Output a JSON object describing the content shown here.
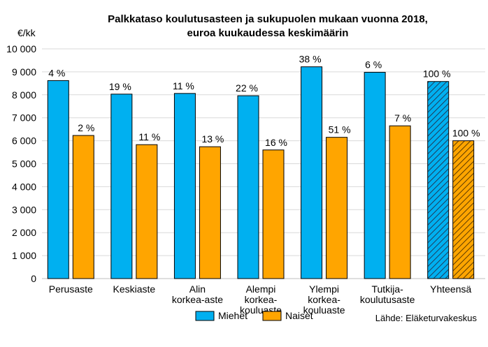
{
  "chart_data": {
    "type": "bar",
    "title": [
      "Palkkataso koulutusasteen ja sukupuolen mukaan vuonna 2018,",
      "euroa kuukaudessa keskimäärin"
    ],
    "ylabel": "€/kk",
    "ylim": [
      0,
      10000
    ],
    "yticks": [
      0,
      1000,
      2000,
      3000,
      4000,
      5000,
      6000,
      7000,
      8000,
      9000,
      10000
    ],
    "ytick_labels": [
      "0",
      "1 000",
      "2 000",
      "3 000",
      "4 000",
      "5 000",
      "6 000",
      "7 000",
      "8 000",
      "9 000",
      "10 000"
    ],
    "grid": true,
    "categories": [
      [
        "Perusaste"
      ],
      [
        "Keskiaste"
      ],
      [
        "Alin",
        "korkea-aste"
      ],
      [
        "Alempi",
        "korkea-",
        "kouluaste"
      ],
      [
        "Ylempi",
        "korkea-",
        "kouluaste"
      ],
      [
        "Tutkija-",
        "koulutusaste"
      ],
      [
        "Yhteensä"
      ]
    ],
    "series": [
      {
        "name": "Miehet",
        "color": "#00b0f0",
        "values": [
          8620,
          8030,
          8060,
          7960,
          9220,
          8980,
          8580
        ],
        "labels": [
          "4 %",
          "19 %",
          "11 %",
          "22 %",
          "38 %",
          "6 %",
          "100 %"
        ]
      },
      {
        "name": "Naiset",
        "color": "#ffa500",
        "values": [
          6230,
          5830,
          5740,
          5600,
          6150,
          6650,
          6000
        ],
        "labels": [
          "2 %",
          "11 %",
          "13 %",
          "16 %",
          "51 %",
          "7 %",
          "100 %"
        ]
      }
    ],
    "hatched_category_index": 6,
    "legend_placement": "bottom-center",
    "source": "Lähde: Eläketurvakeskus"
  }
}
